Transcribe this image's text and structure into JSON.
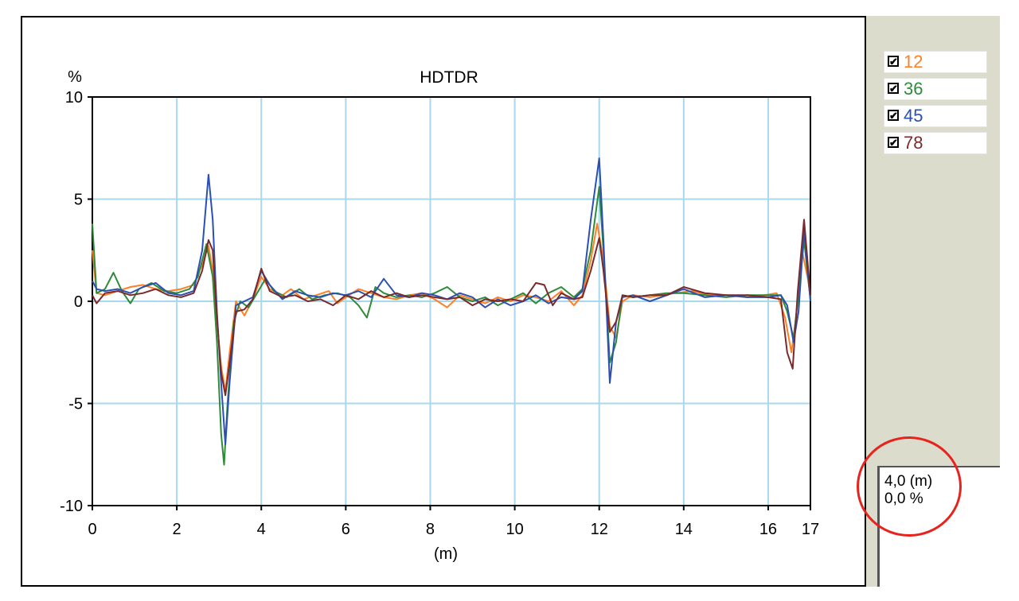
{
  "chart_data": {
    "type": "line",
    "title": "HDTDR",
    "ylabel": "%",
    "xlabel": "(m)",
    "xlim": [
      0,
      17
    ],
    "ylim": [
      -10,
      10
    ],
    "xticks": [
      0,
      2,
      4,
      6,
      8,
      10,
      12,
      14,
      16,
      17
    ],
    "yticks": [
      10,
      5,
      0,
      -5,
      -10
    ],
    "grid": true,
    "legend_position": "right",
    "series": [
      {
        "name": "12",
        "color": "#ff7f27",
        "checked": true,
        "points": [
          [
            0,
            2.5
          ],
          [
            0.1,
            0.4
          ],
          [
            0.3,
            0.3
          ],
          [
            0.6,
            0.5
          ],
          [
            0.9,
            0.7
          ],
          [
            1.2,
            0.8
          ],
          [
            1.5,
            0.6
          ],
          [
            1.8,
            0.5
          ],
          [
            2.1,
            0.6
          ],
          [
            2.4,
            0.8
          ],
          [
            2.6,
            1.8
          ],
          [
            2.75,
            2.7
          ],
          [
            2.85,
            1.5
          ],
          [
            2.95,
            -1
          ],
          [
            3.05,
            -3.2
          ],
          [
            3.15,
            -4.4
          ],
          [
            3.25,
            -2.5
          ],
          [
            3.4,
            0
          ],
          [
            3.6,
            -0.7
          ],
          [
            3.8,
            0.1
          ],
          [
            4.0,
            1.2
          ],
          [
            4.2,
            0.6
          ],
          [
            4.5,
            0.3
          ],
          [
            4.7,
            0.6
          ],
          [
            5.0,
            0.1
          ],
          [
            5.3,
            0.3
          ],
          [
            5.6,
            0.5
          ],
          [
            5.8,
            -0.1
          ],
          [
            6.0,
            0.2
          ],
          [
            6.3,
            0.6
          ],
          [
            6.6,
            0.4
          ],
          [
            6.9,
            0.2
          ],
          [
            7.2,
            0.1
          ],
          [
            7.5,
            0.3
          ],
          [
            7.8,
            0.4
          ],
          [
            8.1,
            0.1
          ],
          [
            8.4,
            -0.3
          ],
          [
            8.7,
            0.3
          ],
          [
            9.0,
            0.1
          ],
          [
            9.3,
            -0.1
          ],
          [
            9.6,
            0.2
          ],
          [
            9.9,
            0
          ],
          [
            10.2,
            0.3
          ],
          [
            10.5,
            0.2
          ],
          [
            10.8,
            0
          ],
          [
            11.1,
            0.5
          ],
          [
            11.4,
            -0.2
          ],
          [
            11.6,
            0.3
          ],
          [
            11.8,
            2
          ],
          [
            11.95,
            3.8
          ],
          [
            12.1,
            2
          ],
          [
            12.25,
            -1.2
          ],
          [
            12.4,
            -1.8
          ],
          [
            12.55,
            0
          ],
          [
            12.8,
            0.3
          ],
          [
            13.2,
            0.2
          ],
          [
            13.5,
            0.3
          ],
          [
            13.8,
            0.4
          ],
          [
            14.2,
            0.5
          ],
          [
            14.6,
            0.3
          ],
          [
            15.0,
            0.3
          ],
          [
            15.5,
            0.2
          ],
          [
            15.9,
            0.3
          ],
          [
            16.2,
            0.4
          ],
          [
            16.4,
            -0.8
          ],
          [
            16.55,
            -2.5
          ],
          [
            16.65,
            -1
          ],
          [
            16.8,
            2.5
          ],
          [
            16.95,
            1
          ],
          [
            17,
            0.2
          ]
        ]
      },
      {
        "name": "36",
        "color": "#2e8b3a",
        "checked": true,
        "points": [
          [
            0,
            3.8
          ],
          [
            0.1,
            0.4
          ],
          [
            0.3,
            0.6
          ],
          [
            0.5,
            1.4
          ],
          [
            0.7,
            0.5
          ],
          [
            0.9,
            -0.1
          ],
          [
            1.1,
            0.6
          ],
          [
            1.4,
            0.9
          ],
          [
            1.7,
            0.5
          ],
          [
            2.0,
            0.4
          ],
          [
            2.3,
            0.6
          ],
          [
            2.5,
            1.2
          ],
          [
            2.7,
            2.8
          ],
          [
            2.85,
            1.2
          ],
          [
            2.95,
            -2
          ],
          [
            3.05,
            -6.5
          ],
          [
            3.12,
            -8
          ],
          [
            3.2,
            -5
          ],
          [
            3.35,
            -1
          ],
          [
            3.5,
            0
          ],
          [
            3.7,
            -0.3
          ],
          [
            3.9,
            0.4
          ],
          [
            4.1,
            1.1
          ],
          [
            4.3,
            0.5
          ],
          [
            4.6,
            0.2
          ],
          [
            4.9,
            0.6
          ],
          [
            5.2,
            0.1
          ],
          [
            5.5,
            0.3
          ],
          [
            5.8,
            0.4
          ],
          [
            6.1,
            0.2
          ],
          [
            6.3,
            -0.2
          ],
          [
            6.5,
            -0.8
          ],
          [
            6.7,
            0.7
          ],
          [
            6.9,
            0.4
          ],
          [
            7.2,
            0.2
          ],
          [
            7.5,
            0.3
          ],
          [
            7.8,
            0.2
          ],
          [
            8.1,
            0.4
          ],
          [
            8.4,
            0.7
          ],
          [
            8.7,
            0.2
          ],
          [
            9.0,
            0
          ],
          [
            9.3,
            0.2
          ],
          [
            9.6,
            -0.2
          ],
          [
            9.9,
            0.1
          ],
          [
            10.2,
            0.4
          ],
          [
            10.5,
            -0.1
          ],
          [
            10.8,
            0.4
          ],
          [
            11.1,
            0.7
          ],
          [
            11.4,
            0.2
          ],
          [
            11.6,
            0.6
          ],
          [
            11.8,
            2.5
          ],
          [
            12.0,
            5.6
          ],
          [
            12.1,
            2.5
          ],
          [
            12.25,
            -3
          ],
          [
            12.4,
            -2
          ],
          [
            12.55,
            0.3
          ],
          [
            12.8,
            0.2
          ],
          [
            13.2,
            0.3
          ],
          [
            13.6,
            0.4
          ],
          [
            14.0,
            0.4
          ],
          [
            14.5,
            0.3
          ],
          [
            15.0,
            0.2
          ],
          [
            15.5,
            0.3
          ],
          [
            16.0,
            0.3
          ],
          [
            16.3,
            0.3
          ],
          [
            16.45,
            -0.5
          ],
          [
            16.6,
            -1.8
          ],
          [
            16.7,
            0
          ],
          [
            16.85,
            3
          ],
          [
            17,
            0.1
          ]
        ]
      },
      {
        "name": "45",
        "color": "#2a4fb5",
        "checked": true,
        "points": [
          [
            0,
            1
          ],
          [
            0.1,
            0.6
          ],
          [
            0.3,
            0.5
          ],
          [
            0.6,
            0.6
          ],
          [
            0.9,
            0.4
          ],
          [
            1.2,
            0.7
          ],
          [
            1.5,
            0.9
          ],
          [
            1.8,
            0.4
          ],
          [
            2.1,
            0.3
          ],
          [
            2.4,
            0.5
          ],
          [
            2.6,
            2.5
          ],
          [
            2.75,
            6.2
          ],
          [
            2.85,
            4
          ],
          [
            2.95,
            -0.5
          ],
          [
            3.05,
            -4
          ],
          [
            3.15,
            -7
          ],
          [
            3.25,
            -4
          ],
          [
            3.4,
            -0.2
          ],
          [
            3.6,
            0
          ],
          [
            3.8,
            0.2
          ],
          [
            4.0,
            1.5
          ],
          [
            4.2,
            0.8
          ],
          [
            4.5,
            0.1
          ],
          [
            4.8,
            0.5
          ],
          [
            5.1,
            0.3
          ],
          [
            5.4,
            0.2
          ],
          [
            5.7,
            0.4
          ],
          [
            6.0,
            0.3
          ],
          [
            6.3,
            0.5
          ],
          [
            6.6,
            0.2
          ],
          [
            6.9,
            1.1
          ],
          [
            7.2,
            0.3
          ],
          [
            7.5,
            0.2
          ],
          [
            7.8,
            0.4
          ],
          [
            8.1,
            0.3
          ],
          [
            8.4,
            0.1
          ],
          [
            8.7,
            0.4
          ],
          [
            9.0,
            0.2
          ],
          [
            9.3,
            -0.3
          ],
          [
            9.6,
            0.1
          ],
          [
            9.9,
            -0.2
          ],
          [
            10.2,
            0
          ],
          [
            10.5,
            0.3
          ],
          [
            10.8,
            -0.1
          ],
          [
            11.1,
            0.2
          ],
          [
            11.4,
            0.1
          ],
          [
            11.6,
            0.5
          ],
          [
            11.8,
            4
          ],
          [
            12.0,
            7
          ],
          [
            12.1,
            3
          ],
          [
            12.25,
            -4
          ],
          [
            12.4,
            -1
          ],
          [
            12.55,
            0.2
          ],
          [
            12.8,
            0.3
          ],
          [
            13.2,
            0
          ],
          [
            13.6,
            0.3
          ],
          [
            14.0,
            0.6
          ],
          [
            14.5,
            0.2
          ],
          [
            15.0,
            0.3
          ],
          [
            15.5,
            0.2
          ],
          [
            16.0,
            0.2
          ],
          [
            16.3,
            0.3
          ],
          [
            16.45,
            -0.2
          ],
          [
            16.6,
            -2
          ],
          [
            16.72,
            -0.5
          ],
          [
            16.85,
            3.5
          ],
          [
            17,
            0
          ]
        ]
      },
      {
        "name": "78",
        "color": "#7a2a2a",
        "checked": true,
        "points": [
          [
            0,
            0.3
          ],
          [
            0.1,
            -0.1
          ],
          [
            0.3,
            0.4
          ],
          [
            0.6,
            0.5
          ],
          [
            0.9,
            0.3
          ],
          [
            1.2,
            0.4
          ],
          [
            1.5,
            0.6
          ],
          [
            1.8,
            0.3
          ],
          [
            2.1,
            0.2
          ],
          [
            2.4,
            0.4
          ],
          [
            2.6,
            1.5
          ],
          [
            2.75,
            3
          ],
          [
            2.85,
            2.5
          ],
          [
            2.95,
            -0.8
          ],
          [
            3.05,
            -3.5
          ],
          [
            3.15,
            -4.6
          ],
          [
            3.25,
            -3
          ],
          [
            3.4,
            -0.5
          ],
          [
            3.6,
            -0.4
          ],
          [
            3.8,
            0.1
          ],
          [
            4.0,
            1.6
          ],
          [
            4.2,
            0.5
          ],
          [
            4.5,
            0.2
          ],
          [
            4.8,
            0.3
          ],
          [
            5.1,
            0
          ],
          [
            5.4,
            0.1
          ],
          [
            5.7,
            -0.2
          ],
          [
            6.0,
            0.3
          ],
          [
            6.3,
            0.1
          ],
          [
            6.6,
            0.5
          ],
          [
            6.9,
            0.2
          ],
          [
            7.2,
            0.4
          ],
          [
            7.5,
            0.2
          ],
          [
            7.8,
            0.3
          ],
          [
            8.1,
            0.2
          ],
          [
            8.4,
            0.1
          ],
          [
            8.7,
            0.2
          ],
          [
            9.0,
            -0.2
          ],
          [
            9.3,
            0.1
          ],
          [
            9.6,
            0
          ],
          [
            9.9,
            0.1
          ],
          [
            10.2,
            0
          ],
          [
            10.5,
            0.9
          ],
          [
            10.7,
            0.8
          ],
          [
            10.9,
            -0.2
          ],
          [
            11.1,
            0.4
          ],
          [
            11.4,
            0.1
          ],
          [
            11.6,
            0.2
          ],
          [
            11.8,
            1.5
          ],
          [
            12.0,
            3.1
          ],
          [
            12.1,
            1.5
          ],
          [
            12.25,
            -1.5
          ],
          [
            12.4,
            -1
          ],
          [
            12.55,
            0.3
          ],
          [
            12.8,
            0.2
          ],
          [
            13.2,
            0.3
          ],
          [
            13.6,
            0.3
          ],
          [
            14.0,
            0.7
          ],
          [
            14.5,
            0.4
          ],
          [
            15.0,
            0.3
          ],
          [
            15.5,
            0.3
          ],
          [
            16.0,
            0.2
          ],
          [
            16.3,
            0.1
          ],
          [
            16.45,
            -2.5
          ],
          [
            16.58,
            -3.3
          ],
          [
            16.7,
            0.5
          ],
          [
            16.85,
            4
          ],
          [
            17,
            0.3
          ]
        ]
      }
    ]
  },
  "readout": {
    "position": "4,0 (m)",
    "value": "0,0 %"
  }
}
